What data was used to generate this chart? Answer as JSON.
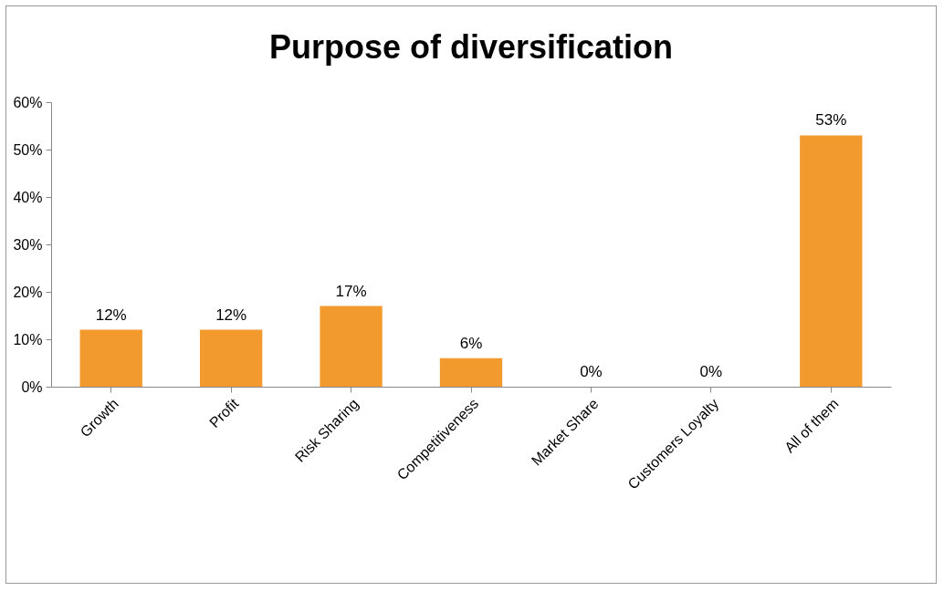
{
  "chart_data": {
    "type": "bar",
    "title": "Purpose of diversification",
    "categories": [
      "Growth",
      "Profit",
      "Risk Sharing",
      "Competitiveness",
      "Market Share",
      "Customers Loyalty",
      "All of them"
    ],
    "values": [
      12,
      12,
      17,
      6,
      0,
      0,
      53
    ],
    "value_labels": [
      "12%",
      "12%",
      "17%",
      "6%",
      "0%",
      "0%",
      "53%"
    ],
    "color": "#f39a2e",
    "ylim": [
      0,
      60
    ],
    "yticks": [
      {
        "value": 0,
        "label": "0%"
      },
      {
        "value": 10,
        "label": "10%"
      },
      {
        "value": 20,
        "label": "20%"
      },
      {
        "value": 30,
        "label": "30%"
      },
      {
        "value": 40,
        "label": "40%"
      },
      {
        "value": 50,
        "label": "50%"
      },
      {
        "value": 60,
        "label": "60%"
      }
    ],
    "grid": false
  }
}
